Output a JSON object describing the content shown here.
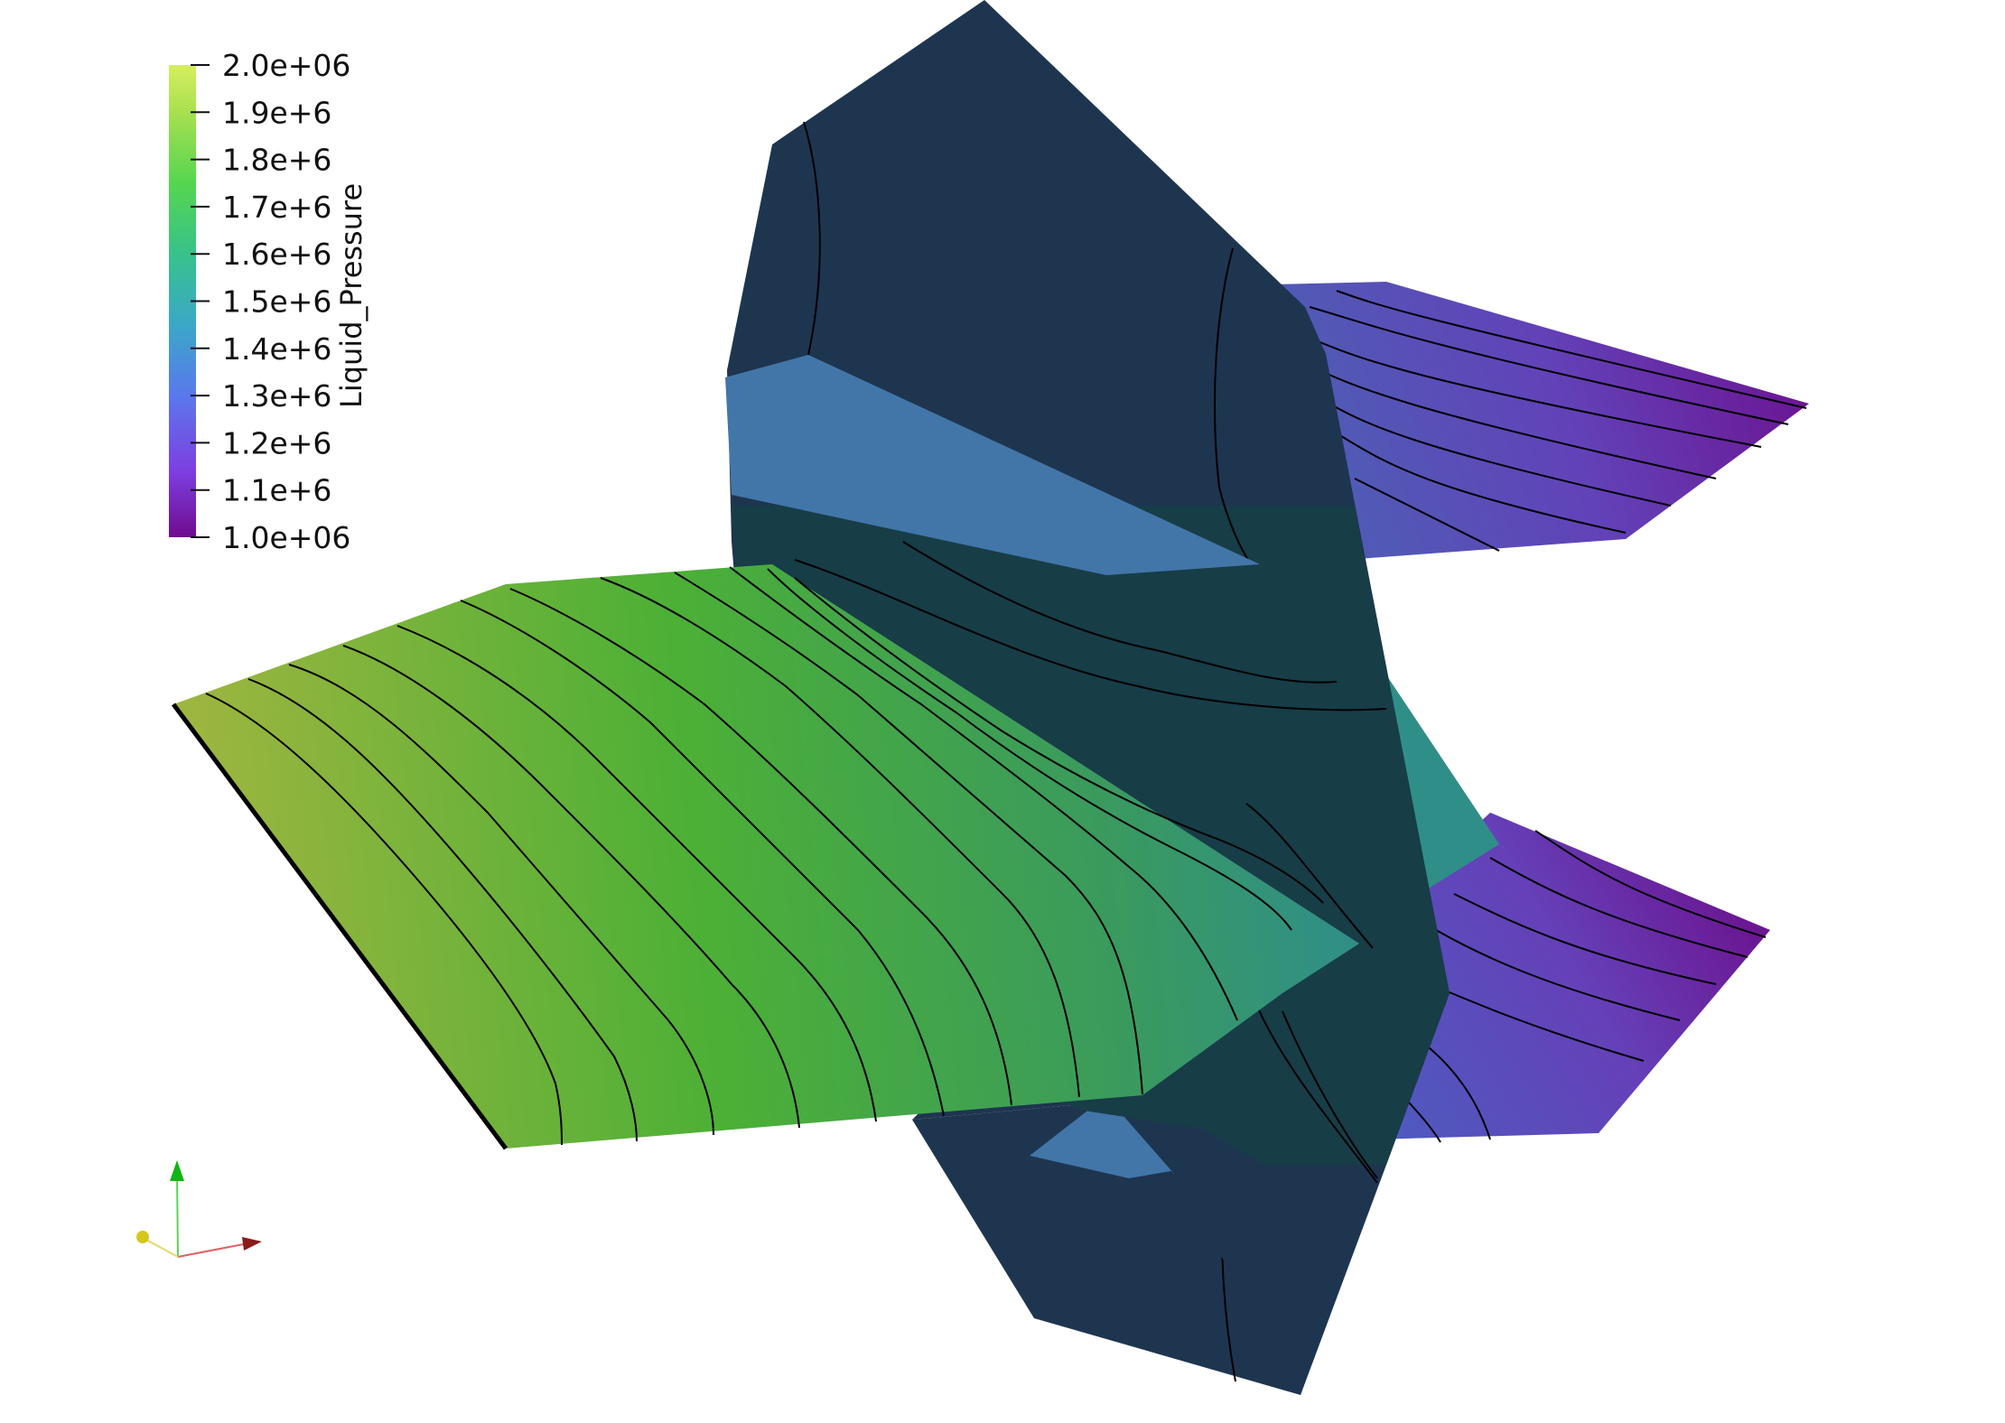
{
  "scalar_bar": {
    "title": "Liquid_Pressure",
    "range": [
      1000000,
      2000000
    ],
    "colors": [
      "#6f0c8f",
      "#7d3fe0",
      "#5a78ec",
      "#3aa8c8",
      "#38c28a",
      "#55d650",
      "#a8e050",
      "#d6ee5e"
    ],
    "labels": [
      "2.0e+06",
      "1.9e+6",
      "1.8e+6",
      "1.7e+6",
      "1.6e+6",
      "1.5e+6",
      "1.4e+6",
      "1.3e+6",
      "1.2e+6",
      "1.1e+6",
      "1.0e+06"
    ]
  },
  "colors": {
    "fracture_surface": "#1e3550",
    "fracture_shade": "#173d47",
    "fracture_edge_light": "#4276a8",
    "plate_teal": "#2f8f88",
    "x_axis": "#8b1a1a",
    "y_axis": "#12b512",
    "z_axis": "#d4c81c"
  }
}
